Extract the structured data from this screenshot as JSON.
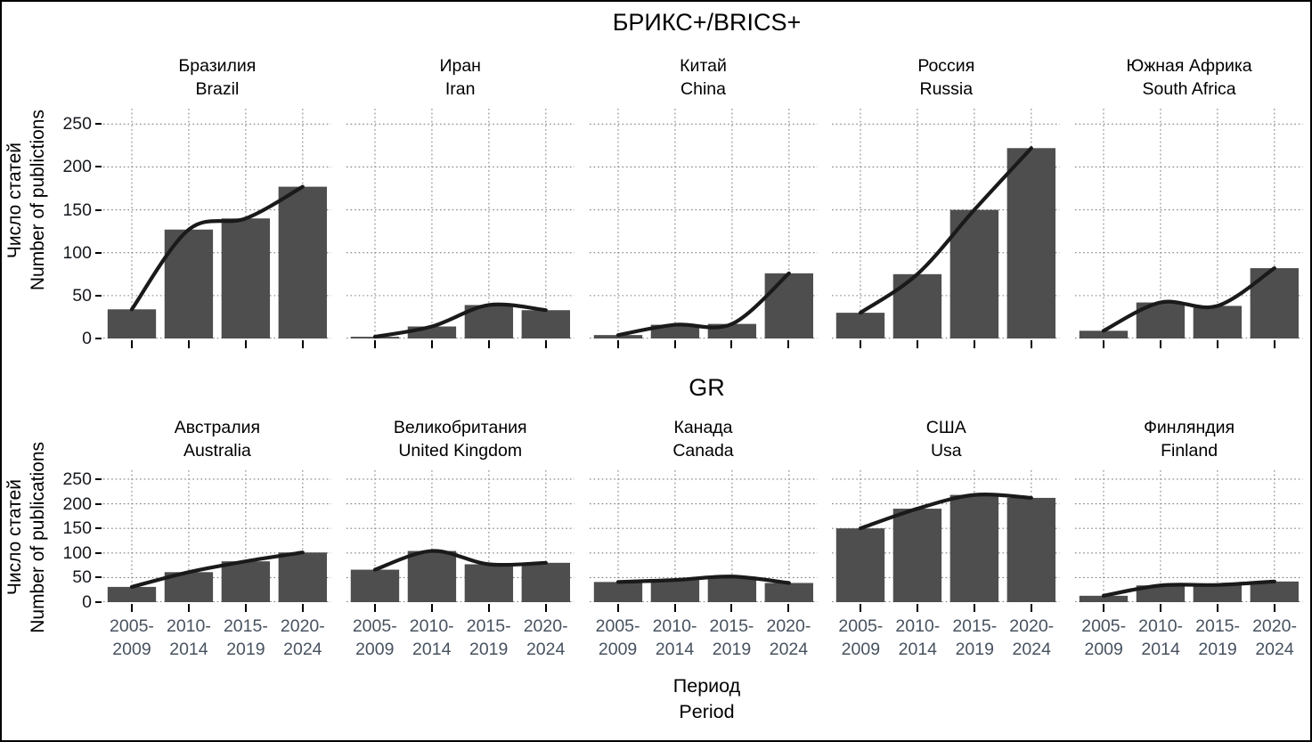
{
  "figure": {
    "top_group_title": "БРИКС+/BRICS+",
    "bottom_group_title": "GR",
    "x_axis_title_ru": "Период",
    "x_axis_title_en": "Period",
    "y_axis_title_ru": "Число статей",
    "y_axis_title_en_top": "Number of publictions",
    "y_axis_title_en_bottom": "Number of publications"
  },
  "ui": {
    "colors": {
      "bar": "#4e4e4e",
      "trend_line": "#1a1a1a",
      "grid": "#7d7d7d",
      "tick_dash": "#000000",
      "x_tick_label": "#47525f",
      "y_tick_label": "#15181d",
      "text": "#000000",
      "background": "#ffffff",
      "border": "#000000"
    }
  },
  "chart_data": [
    {
      "type": "bar",
      "group_title": "БРИКС+/BRICS+",
      "overlay": "smooth trend line through bar tops (loess)",
      "categories": [
        "2005-2009",
        "2010-2014",
        "2015-2019",
        "2020-2024"
      ],
      "x_tick_labels": [
        [
          "2005-",
          "2009"
        ],
        [
          "2010-",
          "2014"
        ],
        [
          "2015-",
          "2019"
        ],
        [
          "2020-",
          "2024"
        ]
      ],
      "x_tick_labels_visible": false,
      "xlabel": "Период / Period",
      "ylabel": "Число статей / Number of publictions",
      "ylim": [
        0,
        268
      ],
      "yticks": [
        0,
        50,
        100,
        150,
        200,
        250
      ],
      "grid": "dotted horizontal at ticks and vertical at category centers",
      "legend": "none",
      "facets": [
        {
          "title_ru": "Бразилия",
          "title_en": "Brazil",
          "values": [
            34,
            127,
            140,
            177
          ]
        },
        {
          "title_ru": "Иран",
          "title_en": "Iran",
          "values": [
            2,
            14,
            39,
            33
          ]
        },
        {
          "title_ru": "Китай",
          "title_en": "China",
          "values": [
            4,
            16,
            17,
            76
          ]
        },
        {
          "title_ru": "Россия",
          "title_en": "Russia",
          "values": [
            30,
            75,
            150,
            222
          ]
        },
        {
          "title_ru": "Южная Африка",
          "title_en": "South Africa",
          "values": [
            9,
            42,
            38,
            82
          ]
        }
      ]
    },
    {
      "type": "bar",
      "group_title": "GR",
      "overlay": "smooth trend line through bar tops (loess)",
      "categories": [
        "2005-2009",
        "2010-2014",
        "2015-2019",
        "2020-2024"
      ],
      "x_tick_labels": [
        [
          "2005-",
          "2009"
        ],
        [
          "2010-",
          "2014"
        ],
        [
          "2015-",
          "2019"
        ],
        [
          "2020-",
          "2024"
        ]
      ],
      "x_tick_labels_visible": true,
      "xlabel": "Период / Period",
      "ylabel": "Число статей / Number of publications",
      "ylim": [
        0,
        268
      ],
      "yticks": [
        0,
        50,
        100,
        150,
        200,
        250
      ],
      "grid": "dotted horizontal at ticks and vertical at category centers",
      "legend": "none",
      "facets": [
        {
          "title_ru": "Австралия",
          "title_en": "Australia",
          "values": [
            31,
            61,
            83,
            101
          ]
        },
        {
          "title_ru": "Великобритания",
          "title_en": "United Kingdom",
          "values": [
            66,
            104,
            77,
            80
          ]
        },
        {
          "title_ru": "Канада",
          "title_en": "Canada",
          "values": [
            41,
            45,
            52,
            39
          ]
        },
        {
          "title_ru": "США",
          "title_en": "Usa",
          "values": [
            150,
            190,
            218,
            212
          ]
        },
        {
          "title_ru": "Финляндия",
          "title_en": "Finland",
          "values": [
            13,
            34,
            35,
            42
          ]
        }
      ]
    }
  ]
}
